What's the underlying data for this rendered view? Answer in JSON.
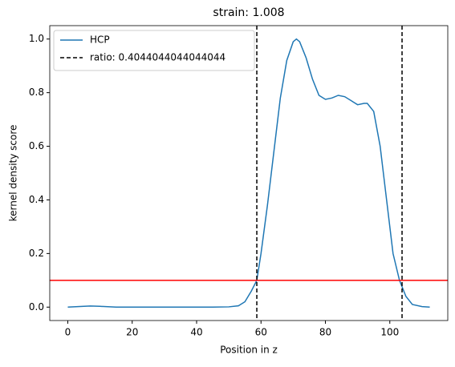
{
  "chart_data": {
    "type": "line",
    "title": "strain: 1.008",
    "xlabel": "Position in z",
    "ylabel": "kernel density score",
    "xlim": [
      -5.6,
      118
    ],
    "ylim": [
      -0.05,
      1.05
    ],
    "xticks": [
      0,
      20,
      40,
      60,
      80,
      100
    ],
    "yticks": [
      {
        "value": 0,
        "label": "0.0"
      },
      0.2,
      0.4,
      0.6,
      0.8,
      {
        "value": 1,
        "label": "1.0"
      }
    ],
    "series": [
      {
        "name": "HCP",
        "color": "#1f77b4",
        "x": [
          0,
          5,
          7,
          10,
          15,
          20,
          30,
          40,
          45,
          50,
          53,
          55,
          57,
          58.7,
          60,
          62,
          64,
          66,
          68,
          70,
          71,
          72,
          74,
          76,
          78,
          80,
          82,
          84,
          86,
          88,
          90,
          92,
          93,
          95,
          97,
          99,
          101,
          103,
          105,
          107,
          110,
          112.4
        ],
        "values": [
          0,
          0.003,
          0.004,
          0.003,
          0,
          0,
          0,
          0,
          0,
          0.001,
          0.005,
          0.02,
          0.06,
          0.1,
          0.2,
          0.38,
          0.58,
          0.78,
          0.92,
          0.99,
          1.0,
          0.99,
          0.93,
          0.85,
          0.79,
          0.775,
          0.78,
          0.79,
          0.785,
          0.77,
          0.755,
          0.76,
          0.76,
          0.73,
          0.6,
          0.4,
          0.2,
          0.1,
          0.04,
          0.01,
          0.002,
          0
        ]
      }
    ],
    "vlines": {
      "name": "ratio: 0.4044044044044044",
      "color": "#000000",
      "x": [
        58.7,
        103.8
      ]
    },
    "hline": {
      "y": 0.1,
      "color": "#ff0000"
    },
    "legend": "upper left"
  }
}
